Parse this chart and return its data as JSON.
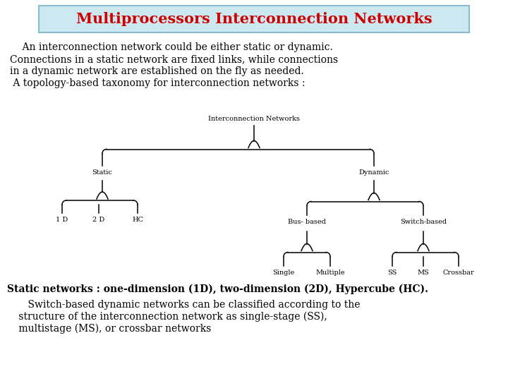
{
  "bg_color": "#ffffff",
  "title": "Multiprocessors Interconnection Networks",
  "title_color": "#cc0000",
  "title_bg": "#cce8f0",
  "title_border_color": "#88bbcc",
  "body_bg": "#ffffff",
  "para1_line1": "    An interconnection network could be either static or dynamic.",
  "para1_line2": "Connections in a static network are fixed links, while connections",
  "para1_line3": "in a dynamic network are established on the fly as needed.",
  "para1_line4": " A topology-based taxonomy for interconnection networks :",
  "para2": "Static networks : one-dimension (1D), two-dimension (2D), Hypercube (HC).",
  "para3_line1": "    Switch-based dynamic networks can be classified according to the",
  "para3_line2": " structure of the interconnection network as single-stage (SS),",
  "para3_line3": " multistage (MS), or crossbar networks",
  "text_color": "#000000",
  "font_family": "DejaVu Serif",
  "title_fontsize": 15,
  "body_fontsize": 10,
  "tree_fontsize": 7
}
